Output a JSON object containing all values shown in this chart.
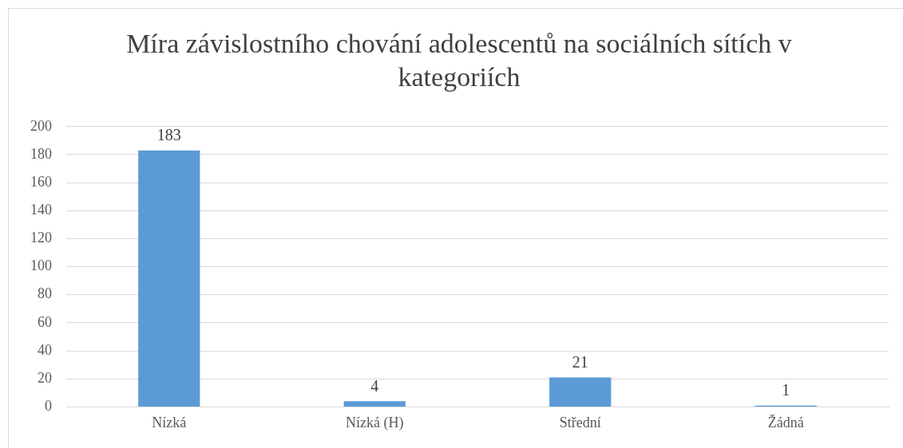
{
  "chart_data": {
    "type": "bar",
    "title": "Míra závislostního chování adolescentů na sociálních sítích v kategoriích",
    "categories": [
      "Nízká",
      "Nízká (H)",
      "Střední",
      "Žádná"
    ],
    "values": [
      183,
      4,
      21,
      1
    ],
    "color": "#5b9bd5",
    "ylim": [
      0,
      200
    ],
    "yticks": [
      0,
      20,
      40,
      60,
      80,
      100,
      120,
      140,
      160,
      180,
      200
    ],
    "grid": "y",
    "data_labels": true,
    "legend": false
  }
}
